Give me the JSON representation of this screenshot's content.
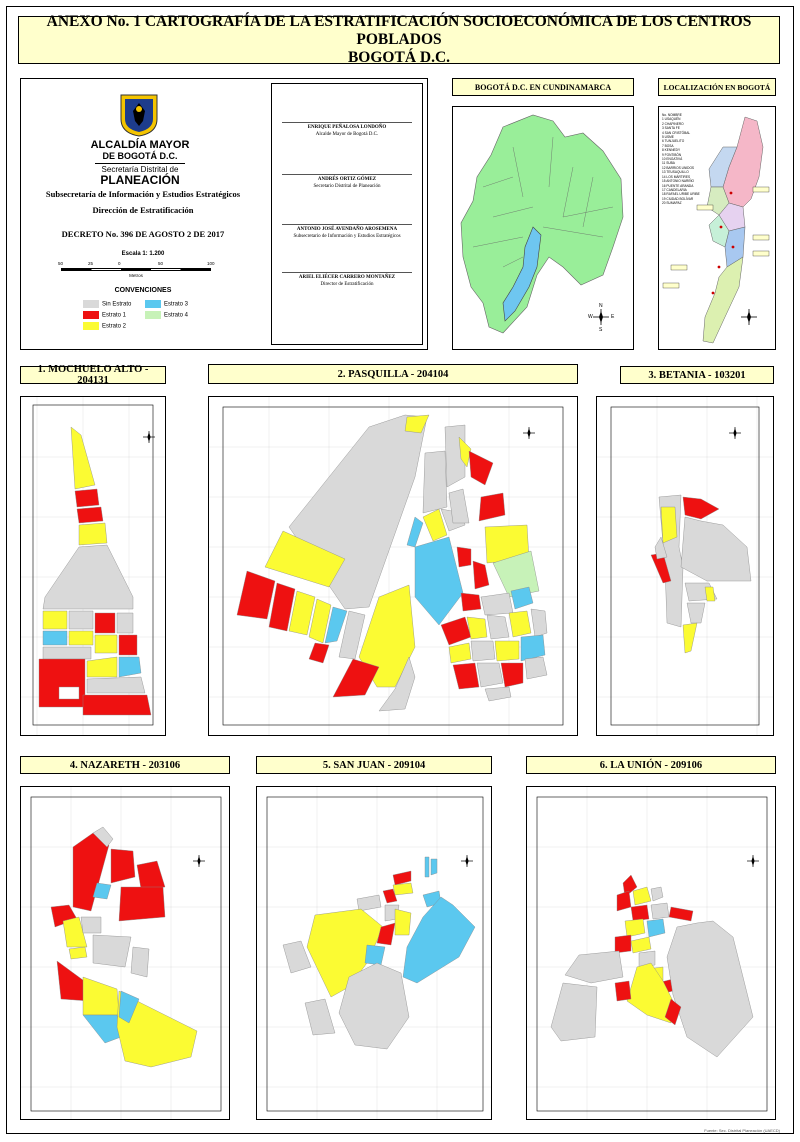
{
  "title": {
    "line1": "ANEXO No. 1 CARTOGRAFÍA DE LA ESTRATIFICACIÓN SOCIOECONÓMICA DE LOS CENTROS POBLADOS",
    "line2": "BOGOTÁ D.C."
  },
  "info": {
    "logo_line1": "ALCALDÍA MAYOR",
    "logo_line2": "DE BOGOTÁ D.C.",
    "logo_line3": "Secretaría Distrital de",
    "logo_line4": "PLANEACIÓN",
    "subsecretaria": "Subsecretaría de Información y Estudios Estratégicos",
    "direccion": "Dirección de Estratificación",
    "decreto": "DECRETO No. 396 DE AGOSTO 2 DE 2017",
    "escala": "Escala 1: 1.200",
    "scale_ticks": [
      "50",
      "25",
      "0",
      "50",
      "100"
    ],
    "scale_unit": "Metros",
    "convenciones_title": "CONVENCIONES",
    "legend": [
      {
        "label": "Sin Estrato",
        "color": "#d9d9d9"
      },
      {
        "label": "Estrato 3",
        "color": "#5bc8ef"
      },
      {
        "label": "Estrato 1",
        "color": "#ee1111"
      },
      {
        "label": "Estrato 4",
        "color": "#c7f2b8"
      },
      {
        "label": "Estrato 2",
        "color": "#fbfb33"
      }
    ]
  },
  "signatures": [
    {
      "name": "ENRIQUE PEÑALOSA LONDOÑO",
      "role": "Alcalde Mayor de Bogotá D.C."
    },
    {
      "name": "ANDRÉS ORTIZ GÓMEZ",
      "role": "Secretario Distrital de Planeación"
    },
    {
      "name": "ANTONIO JOSÉ AVENDAÑO AROSEMENA",
      "role": "Subsecretario de Información y Estudios Estratégicos"
    },
    {
      "name": "ARIEL ELIÉCER CARRERO MONTAÑEZ",
      "role": "Director de Estratificación"
    }
  ],
  "overview": {
    "cundinamarca_title": "BOGOTÁ D.C. EN CUNDINAMARCA",
    "localizacion_title": "LOCALIZACIÓN EN BOGOTÁ",
    "localidades_header": [
      "No.",
      "NOMBRE"
    ],
    "localidades": [
      "1 USAQUÉN",
      "2 CHAPINERO",
      "3 SANTA FE",
      "4 SAN CRISTÓBAL",
      "5 USME",
      "6 TUNJUELITO",
      "7 BOSA",
      "8 KENNEDY",
      "9 FONTIBÓN",
      "10 ENGATIVÁ",
      "11 SUBA",
      "12 BARRIOS UNIDOS",
      "13 TEUSAQUILLO",
      "14 LOS MÁRTIRES",
      "15 ANTONIO NARIÑO",
      "16 PUENTE ARANDA",
      "17 CANDELARIA",
      "18 RAFAEL URIBE URIBE",
      "19 CIUDAD BOLÍVAR",
      "20 SUMAPAZ"
    ],
    "compass": {
      "n": "N",
      "s": "S",
      "e": "E",
      "w": "W"
    }
  },
  "panels": [
    {
      "title": "1. MOCHUELO ALTO - 204131"
    },
    {
      "title": "2. PASQUILLA - 204104"
    },
    {
      "title": "3. BETANIA - 103201"
    },
    {
      "title": "4. NAZARETH - 203106"
    },
    {
      "title": "5. SAN JUAN - 209104"
    },
    {
      "title": "6. LA UNIÓN - 209106"
    }
  ],
  "colors": {
    "sin_estrato": "#d9d9d9",
    "estrato1": "#ee1111",
    "estrato2": "#fbfb33",
    "estrato3": "#5bc8ef",
    "estrato4": "#c7f2b8",
    "label_bg": "#ffffcc",
    "cundinamarca": "#99ee99",
    "water": "#6ec6f0"
  },
  "footer_credit": "Fuente: Sec. Distrital Planeación (UAECD)"
}
